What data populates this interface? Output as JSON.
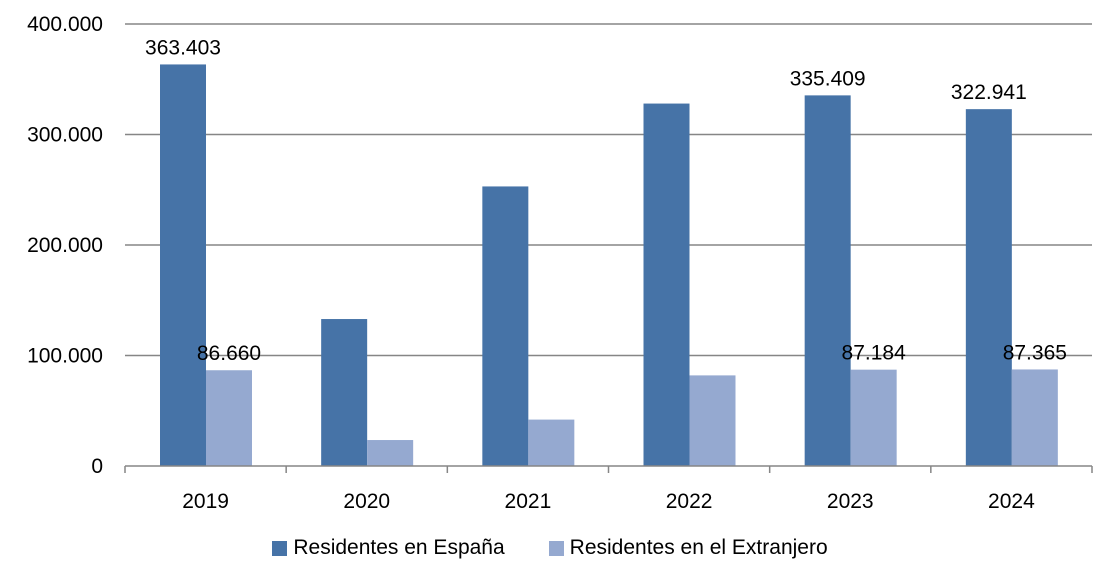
{
  "chart_data": {
    "type": "bar",
    "categories": [
      "2019",
      "2020",
      "2021",
      "2022",
      "2023",
      "2024"
    ],
    "series": [
      {
        "name": "Residentes en España",
        "color": "#4673A7",
        "values": [
          363403,
          133000,
          253000,
          328000,
          335409,
          322941
        ]
      },
      {
        "name": "Residentes en el Extranjero",
        "color": "#95A9D0",
        "values": [
          86660,
          23500,
          42000,
          82000,
          87184,
          87365
        ]
      }
    ],
    "data_labels": [
      {
        "series": 0,
        "index": 0,
        "text": "363.403"
      },
      {
        "series": 1,
        "index": 0,
        "text": "86.660"
      },
      {
        "series": 0,
        "index": 4,
        "text": "335.409"
      },
      {
        "series": 1,
        "index": 4,
        "text": "87.184"
      },
      {
        "series": 0,
        "index": 5,
        "text": "322.941"
      },
      {
        "series": 1,
        "index": 5,
        "text": "87.365"
      }
    ],
    "yticks": [
      {
        "value": 0,
        "label": "0"
      },
      {
        "value": 100000,
        "label": "100.000"
      },
      {
        "value": 200000,
        "label": "200.000"
      },
      {
        "value": 300000,
        "label": "300.000"
      },
      {
        "value": 400000,
        "label": "400.000"
      }
    ],
    "ylim": [
      0,
      400000
    ],
    "title": "",
    "xlabel": "",
    "ylabel": "",
    "grid": true,
    "legend_position": "bottom"
  }
}
